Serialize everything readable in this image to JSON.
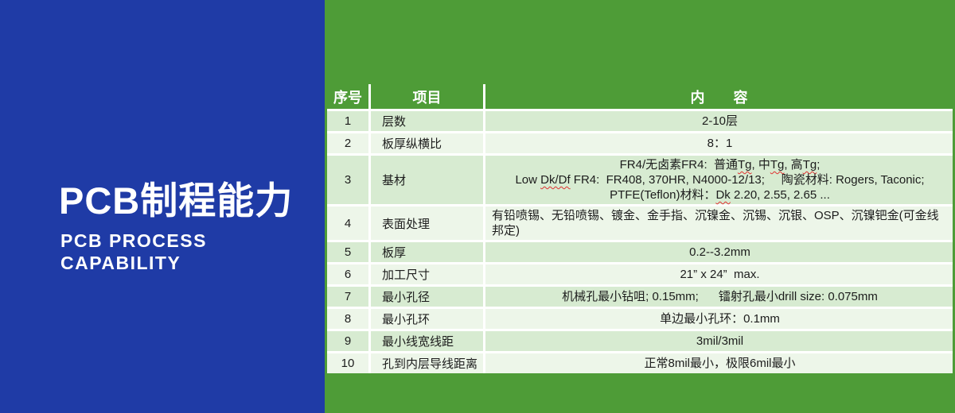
{
  "left_panel": {
    "title": "PCB制程能力",
    "subtitle_line1": "PCB PROCESS",
    "subtitle_line2": "CAPABILITY"
  },
  "colors": {
    "panel_blue": "#1f3ba6",
    "green_bg": "#4e9c37",
    "row_dark": "#d7ebd1",
    "row_light": "#edf6e9",
    "squiggle_red": "#e03030",
    "header_text": "#ffffff"
  },
  "table": {
    "header": {
      "col_number": "序号",
      "col_item": "项目",
      "col_content": "内　　容"
    },
    "rows": [
      {
        "no": "1",
        "item": "层数",
        "lines": [
          [
            {
              "t": "2-10层"
            }
          ]
        ]
      },
      {
        "no": "2",
        "item": "板厚纵横比",
        "lines": [
          [
            {
              "t": "8：1"
            }
          ]
        ]
      },
      {
        "no": "3",
        "item": "基材",
        "lines": [
          [
            {
              "t": "FR4/无卤素FR4:  普通"
            },
            {
              "t": "Tg",
              "sq": true
            },
            {
              "t": ", 中"
            },
            {
              "t": "Tg",
              "sq": true
            },
            {
              "t": ", 高"
            },
            {
              "t": "Tg",
              "sq": true
            },
            {
              "t": ";"
            }
          ],
          [
            {
              "t": "Low "
            },
            {
              "t": "Dk/Df",
              "sq": true
            },
            {
              "t": " FR4:  FR408, 370HR, N4000-12/13;     陶瓷材料: Rogers, Taconic;"
            }
          ],
          [
            {
              "t": "PTFE(Teflon)材料："
            },
            {
              "t": "Dk",
              "sq": true
            },
            {
              "t": " 2.20, 2.55, 2.65 ..."
            }
          ]
        ]
      },
      {
        "no": "4",
        "item": "表面处理",
        "lines": [
          [
            {
              "t": "有铅喷锡、无铅喷锡、镀金、金手指、沉镍金、沉锡、沉银、OSP、沉镍钯金(可金线邦定)"
            }
          ]
        ]
      },
      {
        "no": "5",
        "item": "板厚",
        "lines": [
          [
            {
              "t": "0.2--3.2mm"
            }
          ]
        ]
      },
      {
        "no": "6",
        "item": "加工尺寸",
        "lines": [
          [
            {
              "t": "21” x 24”  max."
            }
          ]
        ]
      },
      {
        "no": "7",
        "item": "最小孔径",
        "lines": [
          [
            {
              "t": "机械孔最小钻咀; 0.15mm;      镭射孔最小drill size: 0.075mm"
            }
          ]
        ]
      },
      {
        "no": "8",
        "item": "最小孔环",
        "lines": [
          [
            {
              "t": "单边最小孔环：0.1mm"
            }
          ]
        ]
      },
      {
        "no": "9",
        "item": "最小线宽线距",
        "lines": [
          [
            {
              "t": "3mil/3mil"
            }
          ]
        ]
      },
      {
        "no": "10",
        "item": "孔到内层导线距离",
        "lines": [
          [
            {
              "t": "正常8mil最小，极限6mil最小"
            }
          ]
        ]
      }
    ]
  }
}
